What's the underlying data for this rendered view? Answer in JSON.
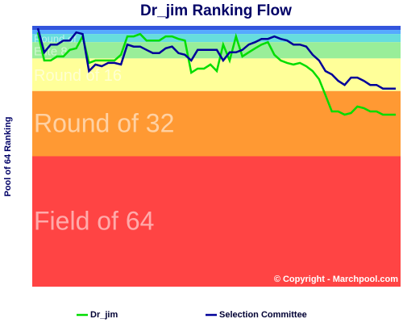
{
  "chart_data": {
    "type": "line",
    "title": "Dr_jim Ranking Flow",
    "ylabel": "Pool of 64 Ranking",
    "ylim": [
      64,
      0
    ],
    "legend": "bottom",
    "watermark": "© Copyright - Marchpool.com",
    "bands": [
      {
        "from": 0,
        "to": 1,
        "color": "#3355dd"
      },
      {
        "from": 1,
        "to": 2,
        "color": "#55aaff"
      },
      {
        "from": 2,
        "to": 4,
        "color": "#66dddd",
        "label": "Round of 4"
      },
      {
        "from": 4,
        "to": 8,
        "color": "#99ee99",
        "label": "Elite 8"
      },
      {
        "from": 8,
        "to": 16,
        "color": "#ffff99",
        "label": "Round of 16"
      },
      {
        "from": 16,
        "to": 32,
        "color": "#ff9933",
        "label": "Round of 32"
      },
      {
        "from": 32,
        "to": 64,
        "color": "#ff4444",
        "label": "Field of 64"
      }
    ],
    "series": [
      {
        "name": "Dr_jim",
        "color": "#00dd00",
        "values": [
          1.6,
          8.5,
          8.5,
          7.5,
          7.5,
          5.9,
          5.5,
          2.6,
          9.1,
          8.5,
          8.5,
          8.5,
          8.5,
          7.1,
          2.6,
          2.6,
          2.0,
          3.6,
          3.6,
          3.6,
          2.6,
          2.6,
          3.2,
          3.6,
          11.5,
          10.5,
          10.5,
          9.5,
          11.1,
          4.6,
          8.5,
          2.6,
          7.5,
          6.5,
          5.5,
          4.6,
          4.0,
          7.1,
          8.5,
          9.1,
          9.5,
          9.1,
          9.9,
          11.1,
          13.1,
          17.0,
          21.0,
          21.0,
          21.8,
          21.4,
          19.8,
          20.2,
          21.0,
          21.0,
          21.8,
          21.8,
          21.8
        ]
      },
      {
        "name": "Selection Committee",
        "color": "#000099",
        "values": [
          0.6,
          6.5,
          4.6,
          4.6,
          3.6,
          3.6,
          1.6,
          2.0,
          11.1,
          9.5,
          9.9,
          9.1,
          9.1,
          9.5,
          4.6,
          5.1,
          5.1,
          5.9,
          6.7,
          6.7,
          5.5,
          5.1,
          6.7,
          7.1,
          8.5,
          5.9,
          5.9,
          5.9,
          5.9,
          8.5,
          6.5,
          6.5,
          5.9,
          4.6,
          4.0,
          3.2,
          3.2,
          2.6,
          3.2,
          3.6,
          4.6,
          4.6,
          5.1,
          7.1,
          8.5,
          11.1,
          11.9,
          13.5,
          14.5,
          12.7,
          12.7,
          13.5,
          14.5,
          14.5,
          15.4,
          15.4,
          15.4
        ]
      }
    ]
  }
}
